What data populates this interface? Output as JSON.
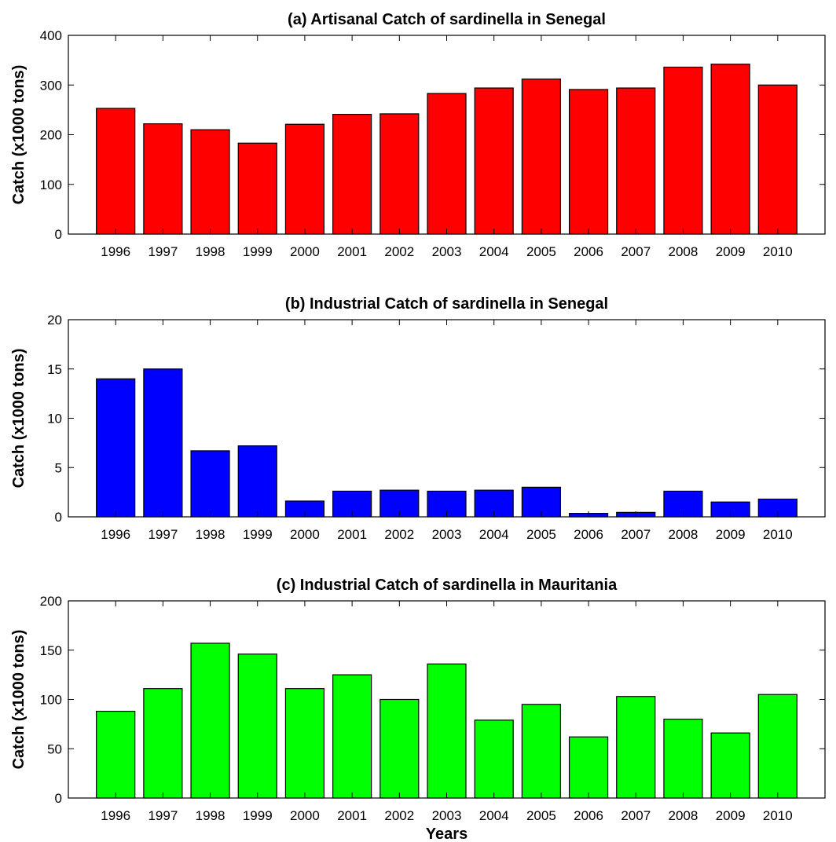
{
  "chart_data": [
    {
      "type": "bar",
      "title": "(a) Artisanal Catch of sardinella in Senegal",
      "ylabel": "Catch (x1000 tons)",
      "xlabel": "",
      "categories": [
        "1996",
        "1997",
        "1998",
        "1999",
        "2000",
        "2001",
        "2002",
        "2003",
        "2004",
        "2005",
        "2006",
        "2007",
        "2008",
        "2009",
        "2010"
      ],
      "values": [
        253,
        222,
        210,
        183,
        221,
        241,
        242,
        283,
        294,
        312,
        291,
        294,
        336,
        342,
        300
      ],
      "ylim": [
        0,
        400
      ],
      "yticks": [
        0,
        100,
        200,
        300,
        400
      ],
      "color": "#ff0000",
      "grid": false
    },
    {
      "type": "bar",
      "title": "(b) Industrial Catch of sardinella in Senegal",
      "ylabel": "Catch (x1000 tons)",
      "xlabel": "",
      "categories": [
        "1996",
        "1997",
        "1998",
        "1999",
        "2000",
        "2001",
        "2002",
        "2003",
        "2004",
        "2005",
        "2006",
        "2007",
        "2008",
        "2009",
        "2010"
      ],
      "values": [
        14.0,
        15.0,
        6.7,
        7.2,
        1.6,
        2.6,
        2.7,
        2.6,
        2.7,
        3.0,
        0.35,
        0.45,
        2.6,
        1.5,
        1.8
      ],
      "ylim": [
        0,
        20
      ],
      "yticks": [
        0,
        5,
        10,
        15,
        20
      ],
      "color": "#0000ff",
      "grid": false
    },
    {
      "type": "bar",
      "title": "(c) Industrial Catch of sardinella in Mauritania",
      "ylabel": "Catch (x1000 tons)",
      "xlabel": "Years",
      "categories": [
        "1996",
        "1997",
        "1998",
        "1999",
        "2000",
        "2001",
        "2002",
        "2003",
        "2004",
        "2005",
        "2006",
        "2007",
        "2008",
        "2009",
        "2010"
      ],
      "values": [
        88,
        111,
        157,
        146,
        111,
        125,
        100,
        136,
        79,
        95,
        62,
        103,
        80,
        66,
        105
      ],
      "ylim": [
        0,
        200
      ],
      "yticks": [
        0,
        50,
        100,
        150,
        200
      ],
      "color": "#00ff00",
      "grid": false
    }
  ]
}
